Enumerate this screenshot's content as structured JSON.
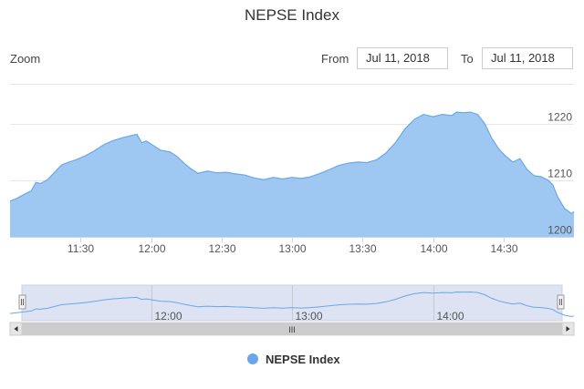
{
  "chart_data": {
    "type": "area",
    "title": "NEPSE Index",
    "legend": {
      "entries": [
        "NEPSE Index"
      ],
      "placement": "bottom-center"
    },
    "colors": {
      "series_fill": "#9ec8f1",
      "series_line": "#6ba7e8",
      "navigator_fill": "#dde3f2",
      "grid": "#e6e6e6"
    },
    "range_selector": {
      "zoom_label": "Zoom",
      "from_label": "From",
      "from_value": "Jul 11, 2018",
      "to_label": "To",
      "to_value": "Jul 11, 2018"
    },
    "x_ticks": [
      "11:30",
      "12:00",
      "12:30",
      "13:00",
      "13:30",
      "14:00",
      "14:30"
    ],
    "x_tick_minutes": [
      690,
      720,
      750,
      780,
      810,
      840,
      870
    ],
    "y_ticks": [
      "1200",
      "1210",
      "1220"
    ],
    "y_tick_values": [
      1200,
      1210,
      1220
    ],
    "navigator_ticks": [
      "12:00",
      "13:00",
      "14:00"
    ],
    "navigator_tick_minutes": [
      720,
      780,
      840
    ],
    "scrollbar_grip": "III",
    "xlim_minutes": [
      660,
      900
    ],
    "ylim": [
      1200,
      1227
    ],
    "grid": true,
    "series": [
      {
        "name": "NEPSE Index",
        "points": [
          [
            660,
            1206.3
          ],
          [
            663,
            1206.8
          ],
          [
            666,
            1207.5
          ],
          [
            669,
            1208.1
          ],
          [
            671,
            1209.6
          ],
          [
            673,
            1209.4
          ],
          [
            676,
            1210.1
          ],
          [
            679,
            1211.4
          ],
          [
            682,
            1212.7
          ],
          [
            685,
            1213.2
          ],
          [
            688,
            1213.6
          ],
          [
            692,
            1214.3
          ],
          [
            696,
            1215.2
          ],
          [
            700,
            1216.3
          ],
          [
            704,
            1217.0
          ],
          [
            708,
            1217.5
          ],
          [
            712,
            1217.9
          ],
          [
            714,
            1218.1
          ],
          [
            716,
            1216.6
          ],
          [
            718,
            1216.9
          ],
          [
            721,
            1216.1
          ],
          [
            724,
            1215.3
          ],
          [
            728,
            1215.0
          ],
          [
            731,
            1214.2
          ],
          [
            734,
            1213.0
          ],
          [
            737,
            1212.0
          ],
          [
            740,
            1211.2
          ],
          [
            744,
            1211.6
          ],
          [
            748,
            1211.3
          ],
          [
            752,
            1211.4
          ],
          [
            756,
            1211.1
          ],
          [
            760,
            1210.9
          ],
          [
            764,
            1210.4
          ],
          [
            768,
            1210.1
          ],
          [
            772,
            1210.5
          ],
          [
            776,
            1210.2
          ],
          [
            780,
            1210.5
          ],
          [
            784,
            1210.3
          ],
          [
            788,
            1210.6
          ],
          [
            792,
            1211.2
          ],
          [
            796,
            1211.9
          ],
          [
            800,
            1212.6
          ],
          [
            804,
            1213.0
          ],
          [
            808,
            1213.2
          ],
          [
            812,
            1213.1
          ],
          [
            816,
            1213.6
          ],
          [
            820,
            1214.8
          ],
          [
            824,
            1216.6
          ],
          [
            828,
            1219.0
          ],
          [
            832,
            1220.7
          ],
          [
            836,
            1221.6
          ],
          [
            840,
            1221.2
          ],
          [
            844,
            1221.6
          ],
          [
            848,
            1221.4
          ],
          [
            850,
            1222.0
          ],
          [
            853,
            1221.9
          ],
          [
            856,
            1222.0
          ],
          [
            859,
            1221.6
          ],
          [
            862,
            1220.0
          ],
          [
            865,
            1217.4
          ],
          [
            868,
            1215.5
          ],
          [
            871,
            1214.2
          ],
          [
            874,
            1213.2
          ],
          [
            877,
            1213.8
          ],
          [
            880,
            1211.9
          ],
          [
            883,
            1210.8
          ],
          [
            886,
            1210.6
          ],
          [
            889,
            1210.0
          ],
          [
            891,
            1209.2
          ],
          [
            893,
            1207.1
          ],
          [
            896,
            1205.0
          ],
          [
            899,
            1204.1
          ],
          [
            900,
            1204.5
          ]
        ]
      }
    ]
  }
}
